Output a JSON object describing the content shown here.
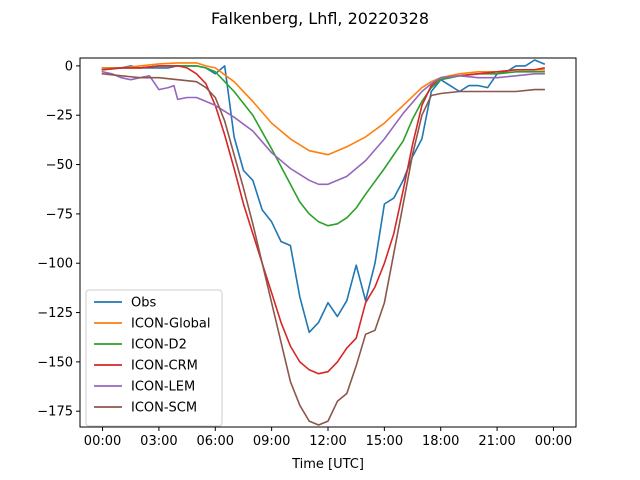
{
  "chart_data": {
    "type": "line",
    "title": "Falkenberg, Lhfl, 20220328",
    "xlabel": "Time [UTC]",
    "ylabel": "",
    "xlim": [
      -1.2,
      25.2
    ],
    "ylim": [
      -183,
      4
    ],
    "xticks": [
      {
        "value": 0,
        "label": "00:00"
      },
      {
        "value": 3,
        "label": "03:00"
      },
      {
        "value": 6,
        "label": "06:00"
      },
      {
        "value": 9,
        "label": "09:00"
      },
      {
        "value": 12,
        "label": "12:00"
      },
      {
        "value": 15,
        "label": "15:00"
      },
      {
        "value": 18,
        "label": "18:00"
      },
      {
        "value": 21,
        "label": "21:00"
      },
      {
        "value": 24,
        "label": "00:00"
      }
    ],
    "yticks": [
      {
        "value": 0,
        "label": "0"
      },
      {
        "value": -25,
        "label": "−25"
      },
      {
        "value": -50,
        "label": "−50"
      },
      {
        "value": -75,
        "label": "−75"
      },
      {
        "value": -100,
        "label": "−100"
      },
      {
        "value": -125,
        "label": "−125"
      },
      {
        "value": -150,
        "label": "−150"
      },
      {
        "value": -175,
        "label": "−175"
      }
    ],
    "grid": false,
    "legend_position": "lower-left",
    "series": [
      {
        "name": "Obs",
        "color": "#1f77b4",
        "points": [
          [
            0.0,
            -1
          ],
          [
            0.5,
            -1
          ],
          [
            1.0,
            -1
          ],
          [
            1.5,
            0
          ],
          [
            2.0,
            -1
          ],
          [
            2.5,
            -1
          ],
          [
            3.0,
            -1
          ],
          [
            3.5,
            -1
          ],
          [
            4.0,
            0
          ],
          [
            4.5,
            0
          ],
          [
            5.0,
            0
          ],
          [
            5.5,
            -1
          ],
          [
            6.0,
            -4
          ],
          [
            6.5,
            0
          ],
          [
            7.0,
            -36
          ],
          [
            7.5,
            -53
          ],
          [
            8.0,
            -58
          ],
          [
            8.5,
            -73
          ],
          [
            9.0,
            -79
          ],
          [
            9.5,
            -89
          ],
          [
            10.0,
            -91
          ],
          [
            10.5,
            -117
          ],
          [
            11.0,
            -135
          ],
          [
            11.5,
            -130
          ],
          [
            12.0,
            -120
          ],
          [
            12.5,
            -127
          ],
          [
            13.0,
            -119
          ],
          [
            13.5,
            -101
          ],
          [
            14.0,
            -119
          ],
          [
            14.5,
            -100
          ],
          [
            15.0,
            -70
          ],
          [
            15.5,
            -67
          ],
          [
            16.0,
            -58
          ],
          [
            16.5,
            -46
          ],
          [
            17.0,
            -37
          ],
          [
            17.5,
            -13
          ],
          [
            18.0,
            -7
          ],
          [
            18.5,
            -10
          ],
          [
            19.0,
            -13
          ],
          [
            19.5,
            -10
          ],
          [
            20.0,
            -10
          ],
          [
            20.5,
            -11
          ],
          [
            21.0,
            -4
          ],
          [
            21.5,
            -3
          ],
          [
            22.0,
            0
          ],
          [
            22.5,
            0
          ],
          [
            23.0,
            3
          ],
          [
            23.5,
            1
          ]
        ]
      },
      {
        "name": "ICON-Global",
        "color": "#ff7f0e",
        "points": [
          [
            0,
            -1
          ],
          [
            1,
            -1
          ],
          [
            2,
            0
          ],
          [
            3,
            1
          ],
          [
            4,
            1.5
          ],
          [
            5,
            1.5
          ],
          [
            5.5,
            0
          ],
          [
            6,
            -1
          ],
          [
            7,
            -8
          ],
          [
            8,
            -18
          ],
          [
            9,
            -29
          ],
          [
            10,
            -37
          ],
          [
            11,
            -43
          ],
          [
            12,
            -45
          ],
          [
            13,
            -41
          ],
          [
            14,
            -36
          ],
          [
            15,
            -29
          ],
          [
            16,
            -20
          ],
          [
            17,
            -11
          ],
          [
            17.5,
            -8
          ],
          [
            18,
            -6
          ],
          [
            19,
            -4
          ],
          [
            20,
            -3
          ],
          [
            21,
            -3
          ],
          [
            22,
            -2
          ],
          [
            23,
            -2
          ],
          [
            23.5,
            -2
          ]
        ]
      },
      {
        "name": "ICON-D2",
        "color": "#2ca02c",
        "points": [
          [
            0,
            -2
          ],
          [
            1,
            -1
          ],
          [
            2,
            -1
          ],
          [
            3,
            0
          ],
          [
            4,
            0
          ],
          [
            5,
            0
          ],
          [
            5.5,
            -1
          ],
          [
            6,
            -3
          ],
          [
            7,
            -13
          ],
          [
            8,
            -25
          ],
          [
            9,
            -42
          ],
          [
            10,
            -60
          ],
          [
            10.5,
            -69
          ],
          [
            11,
            -75
          ],
          [
            11.5,
            -79
          ],
          [
            12,
            -81
          ],
          [
            12.5,
            -80
          ],
          [
            13,
            -77
          ],
          [
            13.5,
            -72
          ],
          [
            14,
            -65
          ],
          [
            15,
            -52
          ],
          [
            16,
            -38
          ],
          [
            16.5,
            -27
          ],
          [
            17,
            -18
          ],
          [
            17.5,
            -11
          ],
          [
            18,
            -7
          ],
          [
            19,
            -5
          ],
          [
            20,
            -4
          ],
          [
            21,
            -4
          ],
          [
            22,
            -3
          ],
          [
            23,
            -3
          ],
          [
            23.5,
            -3
          ]
        ]
      },
      {
        "name": "ICON-CRM",
        "color": "#d62728",
        "points": [
          [
            0,
            -2
          ],
          [
            1,
            -1
          ],
          [
            2,
            -1
          ],
          [
            3,
            0
          ],
          [
            4,
            0
          ],
          [
            4.5,
            -1
          ],
          [
            5,
            -4
          ],
          [
            5.5,
            -9
          ],
          [
            6,
            -20
          ],
          [
            6.5,
            -35
          ],
          [
            7,
            -52
          ],
          [
            7.5,
            -70
          ],
          [
            8,
            -85
          ],
          [
            8.5,
            -100
          ],
          [
            9,
            -115
          ],
          [
            9.5,
            -130
          ],
          [
            10,
            -142
          ],
          [
            10.5,
            -150
          ],
          [
            11,
            -154
          ],
          [
            11.5,
            -156
          ],
          [
            12,
            -155
          ],
          [
            12.5,
            -150
          ],
          [
            13,
            -143
          ],
          [
            13.5,
            -138
          ],
          [
            14,
            -120
          ],
          [
            14.5,
            -112
          ],
          [
            15,
            -100
          ],
          [
            15.5,
            -85
          ],
          [
            16,
            -63
          ],
          [
            16.5,
            -40
          ],
          [
            17,
            -20
          ],
          [
            17.5,
            -10
          ],
          [
            18,
            -6
          ],
          [
            19,
            -5
          ],
          [
            20,
            -4
          ],
          [
            21,
            -3
          ],
          [
            22,
            -2
          ],
          [
            23,
            -2
          ],
          [
            23.5,
            -1
          ]
        ]
      },
      {
        "name": "ICON-LEM",
        "color": "#9467bd",
        "points": [
          [
            0,
            -3
          ],
          [
            0.5,
            -4
          ],
          [
            1,
            -6
          ],
          [
            1.5,
            -7
          ],
          [
            2,
            -6
          ],
          [
            2.5,
            -5
          ],
          [
            3,
            -12
          ],
          [
            3.5,
            -11
          ],
          [
            3.8,
            -10
          ],
          [
            4.0,
            -17
          ],
          [
            4.5,
            -16
          ],
          [
            5,
            -16
          ],
          [
            5.5,
            -18
          ],
          [
            6,
            -20
          ],
          [
            6.5,
            -23
          ],
          [
            7,
            -26
          ],
          [
            8,
            -33
          ],
          [
            9,
            -44
          ],
          [
            10,
            -52
          ],
          [
            11,
            -58
          ],
          [
            11.5,
            -60
          ],
          [
            12,
            -60
          ],
          [
            13,
            -56
          ],
          [
            14,
            -48
          ],
          [
            15,
            -37
          ],
          [
            16,
            -24
          ],
          [
            17,
            -13
          ],
          [
            17.5,
            -9
          ],
          [
            18,
            -6
          ],
          [
            19,
            -5
          ],
          [
            20,
            -6
          ],
          [
            21,
            -6
          ],
          [
            22,
            -5
          ],
          [
            23,
            -4
          ],
          [
            23.5,
            -4
          ]
        ]
      },
      {
        "name": "ICON-SCM",
        "color": "#8c564b",
        "points": [
          [
            0,
            -4
          ],
          [
            1,
            -5
          ],
          [
            2,
            -6
          ],
          [
            3,
            -6
          ],
          [
            4,
            -7
          ],
          [
            5,
            -8
          ],
          [
            5.5,
            -11
          ],
          [
            6,
            -16
          ],
          [
            6.5,
            -28
          ],
          [
            7,
            -45
          ],
          [
            7.5,
            -62
          ],
          [
            8,
            -80
          ],
          [
            8.5,
            -100
          ],
          [
            9,
            -120
          ],
          [
            9.5,
            -140
          ],
          [
            10,
            -160
          ],
          [
            10.5,
            -172
          ],
          [
            11,
            -180
          ],
          [
            11.5,
            -182
          ],
          [
            12,
            -180
          ],
          [
            12.5,
            -170
          ],
          [
            13,
            -166
          ],
          [
            13.5,
            -152
          ],
          [
            14,
            -136
          ],
          [
            14.5,
            -134
          ],
          [
            15,
            -120
          ],
          [
            15.5,
            -95
          ],
          [
            16,
            -70
          ],
          [
            16.5,
            -45
          ],
          [
            17,
            -25
          ],
          [
            17.5,
            -15
          ],
          [
            18,
            -14
          ],
          [
            19,
            -13
          ],
          [
            20,
            -13
          ],
          [
            21,
            -13
          ],
          [
            22,
            -13
          ],
          [
            23,
            -12
          ],
          [
            23.5,
            -12
          ]
        ]
      }
    ]
  }
}
